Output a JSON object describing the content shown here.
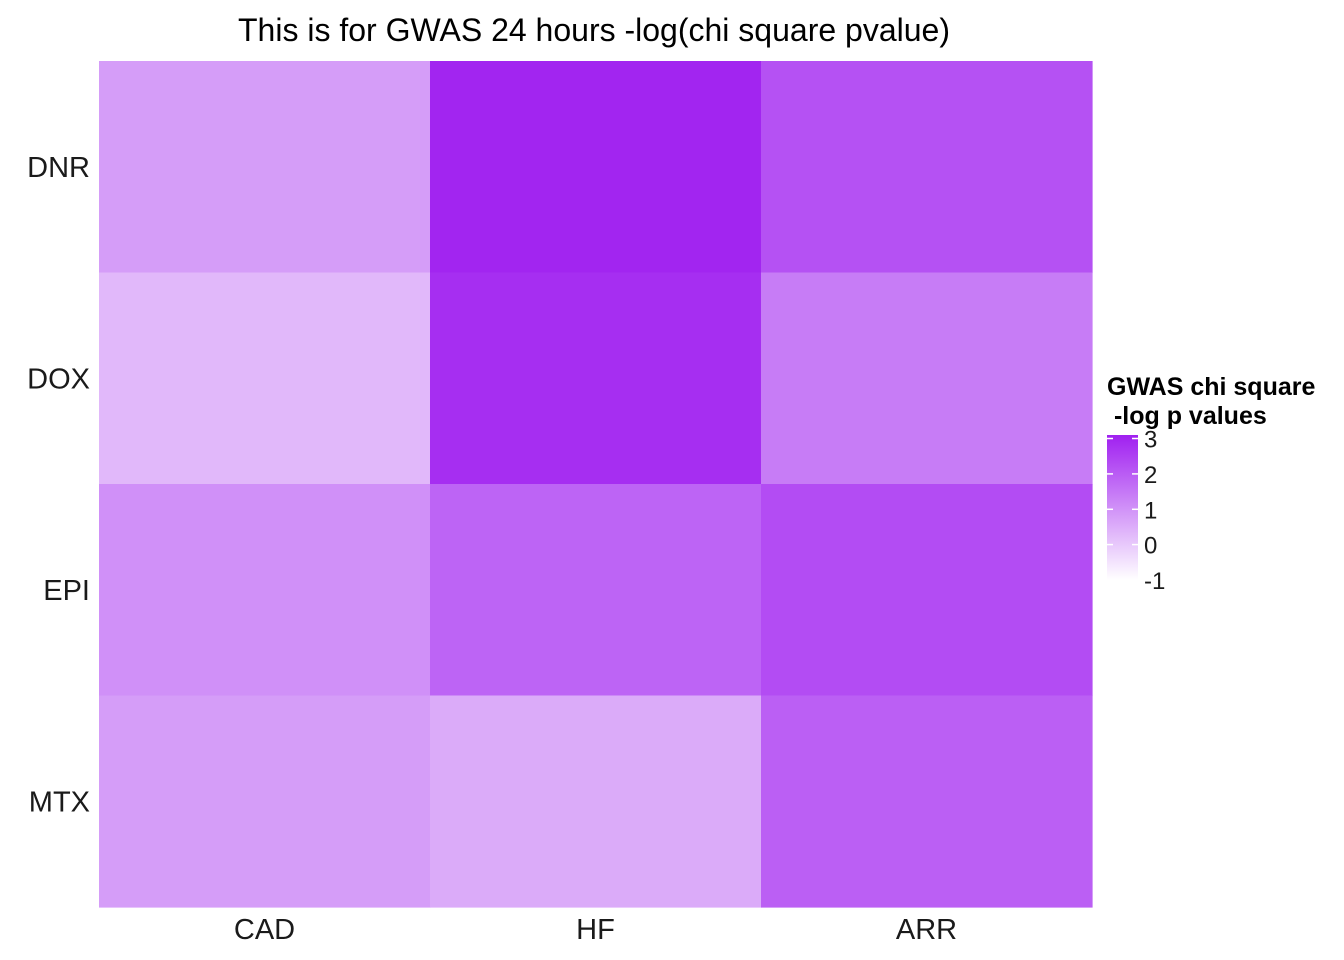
{
  "chart_data": {
    "type": "heatmap",
    "title": "This is for GWAS 24 hours -log(chi square pvalue)",
    "xlabel": "",
    "ylabel": "",
    "x_categories": [
      "CAD",
      "HF",
      "ARR"
    ],
    "y_categories": [
      "DNR",
      "DOX",
      "EPI",
      "MTX"
    ],
    "values": [
      [
        0.8,
        3.0,
        2.2
      ],
      [
        0.3,
        2.85,
        1.4
      ],
      [
        1.05,
        1.85,
        2.3
      ],
      [
        0.8,
        0.55,
        1.95
      ]
    ],
    "legend": {
      "title_lines": [
        "GWAS chi square",
        " -log p values"
      ],
      "ticks": [
        "3",
        "2",
        "1",
        "0",
        "-1"
      ],
      "tick_values": [
        3,
        2,
        1,
        0,
        -1
      ],
      "range": [
        -1,
        3.1
      ],
      "low_color": "#ffffff",
      "high_color": "#a020f0",
      "placement": "right"
    },
    "grid": false
  }
}
